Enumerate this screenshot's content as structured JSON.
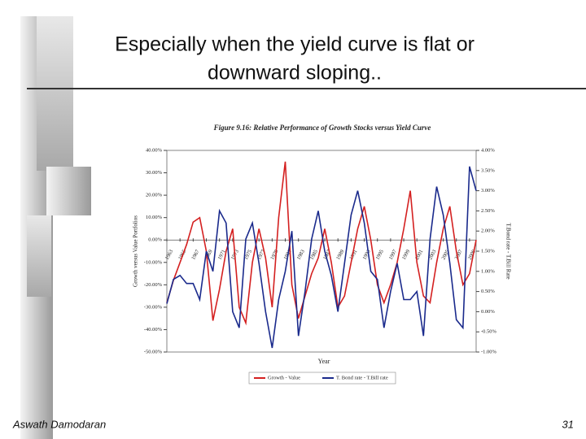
{
  "slide": {
    "title_lines": [
      "Especially when the yield curve is flat or",
      "downward sloping.."
    ],
    "footer": "Aswath Damodaran",
    "page_number": 31
  },
  "chart_data": {
    "type": "line",
    "title": "Figure 9.16: Relative Performance of Growth Stocks versus Yield Curve",
    "x_label": "Year",
    "y_label": "Growth versus Value Portfolios",
    "y2_label": "T.Bond rate - T.Bill Rate",
    "x": [
      1963,
      1964,
      1965,
      1966,
      1967,
      1968,
      1969,
      1970,
      1971,
      1972,
      1973,
      1974,
      1975,
      1976,
      1977,
      1978,
      1979,
      1980,
      1981,
      1982,
      1983,
      1984,
      1985,
      1986,
      1987,
      1988,
      1989,
      1990,
      1991,
      1992,
      1993,
      1994,
      1995,
      1996,
      1997,
      1998,
      1999,
      2000,
      2001,
      2002,
      2003,
      2004,
      2005,
      2006,
      2007,
      2008,
      2009,
      2010
    ],
    "xlim": [
      1963,
      2010
    ],
    "xticks": [
      1963,
      1965,
      1967,
      1969,
      1971,
      1973,
      1975,
      1977,
      1979,
      1981,
      1983,
      1985,
      1987,
      1989,
      1991,
      1993,
      1995,
      1997,
      1999,
      2001,
      2003,
      2005,
      2007,
      2009
    ],
    "ylim": [
      -50,
      40
    ],
    "yticks": [
      {
        "value": -50,
        "label": "-50.00%"
      },
      {
        "value": -40,
        "label": "-40.00%"
      },
      {
        "value": -30,
        "label": "-30.00%"
      },
      {
        "value": -20,
        "label": "-20.00%"
      },
      {
        "value": -10,
        "label": "-10.00%"
      },
      {
        "value": 0,
        "label": "0.00%"
      },
      {
        "value": 10,
        "label": "10.00%"
      },
      {
        "value": 20,
        "label": "20.00%"
      },
      {
        "value": 30,
        "label": "30.00%"
      },
      {
        "value": 40,
        "label": "40.00%"
      }
    ],
    "y2lim": [
      -1,
      4
    ],
    "y2ticks": [
      {
        "value": -1,
        "label": "-1.00%"
      },
      {
        "value": -0.5,
        "label": "-0.50%"
      },
      {
        "value": 0,
        "label": "0.00%"
      },
      {
        "value": 0.5,
        "label": "0.50%"
      },
      {
        "value": 1,
        "label": "1.00%"
      },
      {
        "value": 1.5,
        "label": "1.50%"
      },
      {
        "value": 2,
        "label": "2.00%"
      },
      {
        "value": 2.5,
        "label": "2.50%"
      },
      {
        "value": 3,
        "label": "3.00%"
      },
      {
        "value": 3.5,
        "label": "3.50%"
      },
      {
        "value": 4,
        "label": "4.00%"
      }
    ],
    "legend": "bottom",
    "series": [
      {
        "name": "Growth - Value",
        "color": "#d42020",
        "axis": "y",
        "values": [
          -28,
          -18,
          -10,
          -2,
          8,
          10,
          -5,
          -36,
          -22,
          -5,
          5,
          -30,
          -37,
          -10,
          5,
          -8,
          -30,
          10,
          35,
          -20,
          -35,
          -25,
          -15,
          -8,
          5,
          -10,
          -30,
          -25,
          -10,
          5,
          15,
          0,
          -20,
          -28,
          -20,
          -10,
          5,
          22,
          -10,
          -25,
          -28,
          -10,
          5,
          15,
          -5,
          -20,
          -15,
          0
        ]
      },
      {
        "name": "T. Bond rate - T.Bill rate",
        "color": "#1a2a8c",
        "axis": "y2",
        "values": [
          0.2,
          0.8,
          0.9,
          0.7,
          0.7,
          0.3,
          1.5,
          1.0,
          2.5,
          2.2,
          0.0,
          -0.4,
          1.8,
          2.2,
          1.2,
          0.0,
          -0.9,
          0.3,
          1.0,
          2.0,
          -0.6,
          0.5,
          1.8,
          2.5,
          1.5,
          0.9,
          0.0,
          1.2,
          2.4,
          3.0,
          2.2,
          1.0,
          0.8,
          -0.4,
          0.5,
          1.2,
          0.3,
          0.3,
          0.5,
          -0.6,
          1.8,
          3.1,
          2.4,
          1.2,
          -0.2,
          -0.4,
          3.6,
          3.0
        ]
      }
    ]
  }
}
